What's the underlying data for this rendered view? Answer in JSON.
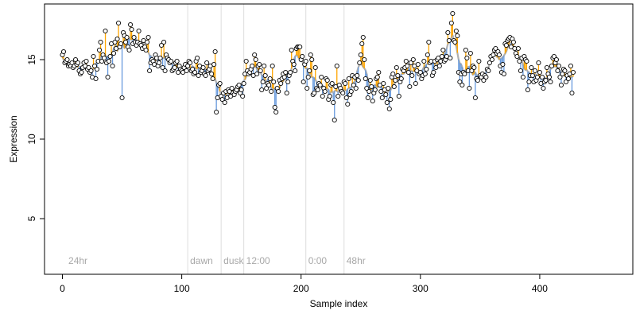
{
  "chart_data": {
    "type": "scatter",
    "title": "",
    "xlabel": "Sample index",
    "ylabel": "Expression",
    "xlim": [
      -15,
      478
    ],
    "ylim": [
      1.5,
      18.5
    ],
    "x_ticks": [
      0,
      100,
      200,
      300,
      400
    ],
    "x_tick_labels": [
      "0",
      "100",
      "200",
      "300",
      "400"
    ],
    "y_ticks": [
      5,
      10,
      15
    ],
    "y_tick_labels": [
      "5",
      "10",
      "15"
    ],
    "grid": false,
    "legend": "none",
    "colors": {
      "fit_line": "#b0b0b0",
      "above_fit": "#ffa500",
      "below_fit": "#6699dd",
      "annotation_line": "#dddddd",
      "annotation_text": "#a8a8a8",
      "point_fill": "#ffffff",
      "point_stroke": "#000000"
    },
    "annotations": [
      {
        "x": 3,
        "label": "24hr",
        "line": false
      },
      {
        "x": 105,
        "label": "dawn",
        "line": true
      },
      {
        "x": 133,
        "label": "dusk",
        "line": true
      },
      {
        "x": 152,
        "label": "12:00",
        "line": true
      },
      {
        "x": 204,
        "label": "0:00",
        "line": true
      },
      {
        "x": 236,
        "label": "48hr",
        "line": true
      }
    ],
    "series": [
      {
        "values": [
          15.3,
          15.5,
          14.8,
          14.9,
          15.0,
          14.6,
          14.7,
          14.6,
          14.8,
          14.5,
          14.6,
          15.0,
          14.7,
          14.8,
          14.3,
          14.1,
          14.2,
          14.5,
          14.8,
          14.6,
          14.9,
          14.4,
          14.5,
          14.2,
          14.3,
          13.9,
          15.2,
          14.6,
          13.8,
          14.4,
          14.9,
          15.6,
          16.1,
          14.9,
          15.3,
          15.1,
          16.8,
          14.8,
          13.9,
          14.9,
          15.2,
          16.0,
          14.6,
          15.4,
          16.1,
          15.7,
          16.3,
          17.3,
          15.8,
          16.0,
          12.6,
          16.7,
          16.5,
          16.1,
          16.4,
          15.8,
          15.6,
          17.2,
          16.9,
          16.0,
          16.4,
          16.1,
          15.9,
          16.1,
          16.8,
          16.0,
          15.9,
          15.7,
          16.2,
          15.8,
          15.6,
          16.1,
          16.4,
          14.3,
          14.8,
          15.0,
          14.9,
          14.7,
          15.3,
          15.1,
          14.6,
          14.8,
          15.1,
          15.9,
          14.5,
          16.1,
          14.3,
          15.3,
          15.1,
          15.0,
          14.8,
          14.9,
          14.3,
          14.4,
          14.5,
          14.8,
          14.9,
          14.2,
          14.6,
          14.4,
          14.3,
          14.2,
          14.5,
          14.7,
          14.3,
          14.6,
          14.9,
          14.8,
          14.3,
          14.4,
          14.1,
          14.2,
          14.9,
          15.1,
          14.0,
          14.6,
          14.2,
          14.3,
          14.5,
          14.1,
          14.0,
          14.8,
          14.3,
          14.4,
          14.6,
          14.1,
          13.8,
          14.7,
          15.5,
          11.7,
          12.6,
          13.4,
          13.5,
          12.7,
          12.5,
          12.9,
          12.3,
          13.0,
          12.6,
          13.1,
          13.0,
          12.7,
          13.2,
          12.9,
          12.8,
          13.0,
          13.1,
          13.3,
          13.4,
          12.9,
          13.1,
          12.7,
          13.5,
          14.1,
          14.9,
          14.3,
          14.1,
          14.2,
          14.4,
          14.6,
          14.0,
          15.3,
          15.0,
          14.1,
          14.6,
          14.7,
          14.3,
          13.1,
          13.6,
          14.6,
          14.0,
          13.2,
          13.5,
          13.4,
          13.8,
          13.0,
          14.6,
          13.6,
          12.0,
          11.7,
          13.2,
          13.0,
          13.7,
          13.5,
          13.8,
          14.1,
          13.9,
          14.2,
          12.9,
          13.6,
          14.0,
          14.2,
          15.6,
          14.9,
          14.7,
          14.3,
          15.7,
          15.8,
          15.8,
          15.8,
          15.0,
          15.2,
          13.6,
          14.7,
          14.9,
          13.2,
          13.9,
          14.3,
          15.3,
          15.0,
          12.8,
          12.9,
          14.5,
          13.2,
          13.1,
          13.5,
          13.4,
          13.9,
          12.7,
          13.2,
          13.0,
          13.8,
          13.7,
          12.5,
          12.7,
          13.4,
          13.5,
          12.3,
          11.2,
          13.3,
          14.6,
          12.7,
          13.4,
          13.2,
          13.0,
          12.9,
          13.6,
          13.5,
          12.6,
          12.2,
          13.8,
          12.8,
          13.0,
          14.0,
          13.4,
          13.9,
          13.2,
          14.0,
          13.7,
          14.8,
          15.3,
          16.0,
          16.4,
          15.0,
          13.8,
          13.2,
          12.6,
          13.0,
          13.7,
          13.3,
          12.4,
          12.9,
          13.1,
          13.8,
          13.9,
          14.2,
          13.4,
          13.0,
          12.6,
          13.5,
          13.1,
          12.8,
          12.3,
          13.2,
          11.9,
          12.5,
          13.9,
          14.1,
          13.3,
          13.7,
          14.5,
          14.0,
          12.7,
          13.6,
          13.8,
          14.4,
          14.3,
          14.5,
          14.9,
          14.6,
          14.2,
          13.3,
          14.8,
          14.0,
          15.0,
          14.6,
          13.5,
          14.3,
          14.7,
          14.1,
          14.2,
          13.8,
          14.0,
          14.9,
          14.1,
          14.4,
          15.3,
          16.1,
          14.8,
          14.9,
          14.0,
          14.2,
          14.9,
          14.5,
          15.0,
          15.1,
          14.6,
          14.9,
          15.2,
          15.6,
          14.9,
          15.0,
          15.2,
          16.7,
          16.2,
          15.1,
          17.3,
          17.9,
          16.2,
          16.1,
          16.8,
          16.5,
          14.2,
          13.6,
          14.1,
          13.4,
          14.2,
          14.1,
          15.6,
          15.1,
          14.3,
          13.2,
          15.4,
          14.3,
          14.6,
          14.5,
          12.6,
          13.8,
          13.7,
          14.9,
          14.0,
          13.9,
          14.1,
          13.7,
          14.0,
          13.9,
          14.4,
          14.3,
          14.8,
          15.2,
          15.0,
          15.3,
          15.6,
          15.7,
          15.4,
          15.5,
          15.3,
          14.6,
          14.2,
          14.7,
          14.1,
          16.0,
          15.9,
          16.2,
          16.3,
          16.4,
          15.8,
          16.3,
          16.1,
          15.7,
          15.4,
          15.2,
          15.7,
          14.9,
          14.3,
          15.1,
          13.9,
          15.2,
          15.0,
          14.9,
          13.1,
          13.6,
          14.0,
          14.5,
          14.0,
          13.6,
          14.3,
          13.7,
          13.9,
          14.8,
          14.2,
          13.5,
          13.9,
          13.2,
          13.6,
          13.7,
          14.5,
          14.1,
          13.9,
          13.6,
          14.6,
          15.1,
          15.2,
          14.8,
          15.0,
          14.3,
          14.6,
          13.9,
          13.4,
          14.1,
          14.4,
          14.3,
          13.6,
          14.0,
          13.8,
          14.1,
          14.6,
          12.9,
          14.2
        ]
      }
    ]
  }
}
